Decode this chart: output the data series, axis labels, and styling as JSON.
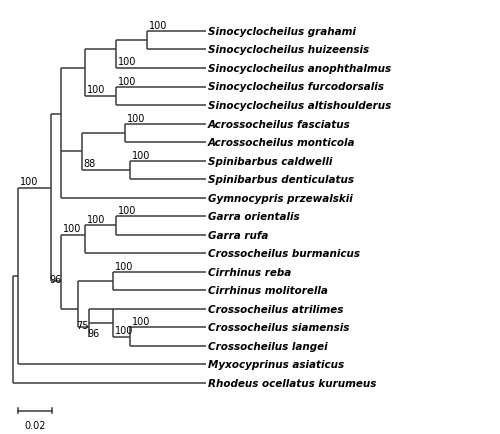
{
  "species": [
    "Sinocyclocheilus grahami",
    "Sinocyclocheilus huizeensis",
    "Sinocyclocheilus anophthalmus",
    "Sinocyclocheilus furcodorsalis",
    "Sinocyclocheilus altishoulderus",
    "Acrossocheilus fasciatus",
    "Acrossocheilus monticola",
    "Spinibarbus caldwelli",
    "Spinibarbus denticulatus",
    "Gymnocypris przewalskii",
    "Garra orientalis",
    "Garra rufa",
    "Crossocheilus burmanicus",
    "Cirrhinus reba",
    "Cirrhinus molitorella",
    "Crossocheilus atrilimes",
    "Crossocheilus siamensis",
    "Crossocheilus langei",
    "Myxocyprinus asiaticus",
    "Rhodeus ocellatus kurumeus"
  ],
  "scale_bar_label": "0.02",
  "scale_bar_value": 0.02,
  "line_color": "#3a3a3a",
  "text_color": "#000000",
  "font_size": 7.5,
  "bootstrap_font_size": 7.0,
  "line_width": 1.1
}
